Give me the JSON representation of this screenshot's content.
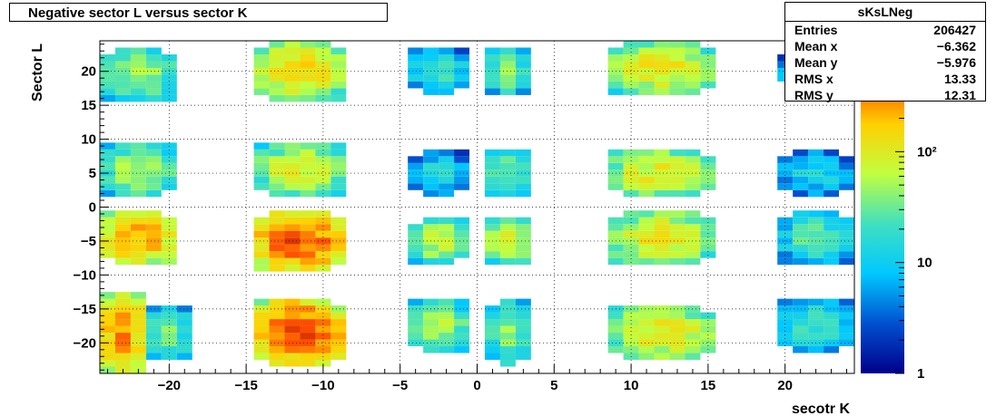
{
  "title": "Negative sector L versus sector K",
  "stats": {
    "name": "sKsLNeg",
    "rows": [
      {
        "label": "Entries",
        "value": "206427"
      },
      {
        "label": "Mean x",
        "value": "−6.362"
      },
      {
        "label": "Mean y",
        "value": "−5.976"
      },
      {
        "label": "RMS x",
        "value": "13.33"
      },
      {
        "label": "RMS y",
        "value": "12.31"
      }
    ]
  },
  "chart_data": {
    "type": "heatmap",
    "xlabel": "secotr K",
    "ylabel": "Sector L",
    "xlim": [
      -24.5,
      24.5
    ],
    "ylim": [
      -24.5,
      24.5
    ],
    "x_ticks": [
      -20,
      -15,
      -10,
      -5,
      0,
      5,
      10,
      15,
      20
    ],
    "y_ticks": [
      -20,
      -15,
      -10,
      -5,
      0,
      5,
      10,
      15,
      20
    ],
    "x_tick_labels": [
      "−20",
      "−15",
      "−10",
      "−5",
      "0",
      "5",
      "10",
      "15",
      "20"
    ],
    "y_tick_labels": [
      "−20",
      "−15",
      "−10",
      "−5",
      "0",
      "5",
      "10",
      "15",
      "20"
    ],
    "grid": true,
    "colorbar": {
      "scale": "log",
      "min": 1,
      "max": 1000,
      "tick_labels": [
        "1",
        "10",
        "10²"
      ],
      "tick_values": [
        1,
        10,
        100
      ]
    },
    "bands": [
      {
        "k": [
          -24,
          -22
        ],
        "l": [
          -24,
          -13
        ],
        "value": 300
      },
      {
        "k": [
          -21,
          -19
        ],
        "l": [
          -22,
          -15
        ],
        "value": 40
      },
      {
        "k": [
          -14,
          -9
        ],
        "l": [
          -23,
          -14
        ],
        "value": 450
      },
      {
        "k": [
          -4,
          -1
        ],
        "l": [
          -21,
          -14
        ],
        "value": 60
      },
      {
        "k": [
          1,
          3
        ],
        "l": [
          -23,
          -14
        ],
        "value": 40
      },
      {
        "k": [
          9,
          15
        ],
        "l": [
          -22,
          -15
        ],
        "value": 120
      },
      {
        "k": [
          20,
          24
        ],
        "l": [
          -21,
          -14
        ],
        "value": 25
      },
      {
        "k": [
          -24,
          -20
        ],
        "l": [
          -8,
          -1
        ],
        "value": 250
      },
      {
        "k": [
          -14,
          -9
        ],
        "l": [
          -9,
          -1
        ],
        "value": 450
      },
      {
        "k": [
          -4,
          -1
        ],
        "l": [
          -8,
          -2
        ],
        "value": 70
      },
      {
        "k": [
          1,
          3
        ],
        "l": [
          -8,
          -2
        ],
        "value": 90
      },
      {
        "k": [
          9,
          15
        ],
        "l": [
          -8,
          -1
        ],
        "value": 120
      },
      {
        "k": [
          20,
          24
        ],
        "l": [
          -8,
          -1
        ],
        "value": 30
      },
      {
        "k": [
          -24,
          -20
        ],
        "l": [
          2,
          9
        ],
        "value": 60
      },
      {
        "k": [
          -14,
          -9
        ],
        "l": [
          2,
          9
        ],
        "value": 90
      },
      {
        "k": [
          -4,
          -1
        ],
        "l": [
          2,
          8
        ],
        "value": 15
      },
      {
        "k": [
          1,
          3
        ],
        "l": [
          2,
          8
        ],
        "value": 40
      },
      {
        "k": [
          9,
          15
        ],
        "l": [
          2,
          8
        ],
        "value": 120
      },
      {
        "k": [
          20,
          24
        ],
        "l": [
          2,
          8
        ],
        "value": 15
      },
      {
        "k": [
          -24,
          -20
        ],
        "l": [
          16,
          23
        ],
        "value": 60
      },
      {
        "k": [
          -14,
          -9
        ],
        "l": [
          16,
          24
        ],
        "value": 150
      },
      {
        "k": [
          -4,
          -1
        ],
        "l": [
          17,
          23
        ],
        "value": 25
      },
      {
        "k": [
          1,
          3
        ],
        "l": [
          17,
          23
        ],
        "value": 40
      },
      {
        "k": [
          9,
          15
        ],
        "l": [
          17,
          24
        ],
        "value": 120
      },
      {
        "k": [
          20,
          24
        ],
        "l": [
          18,
          22
        ],
        "value": 20
      }
    ]
  }
}
